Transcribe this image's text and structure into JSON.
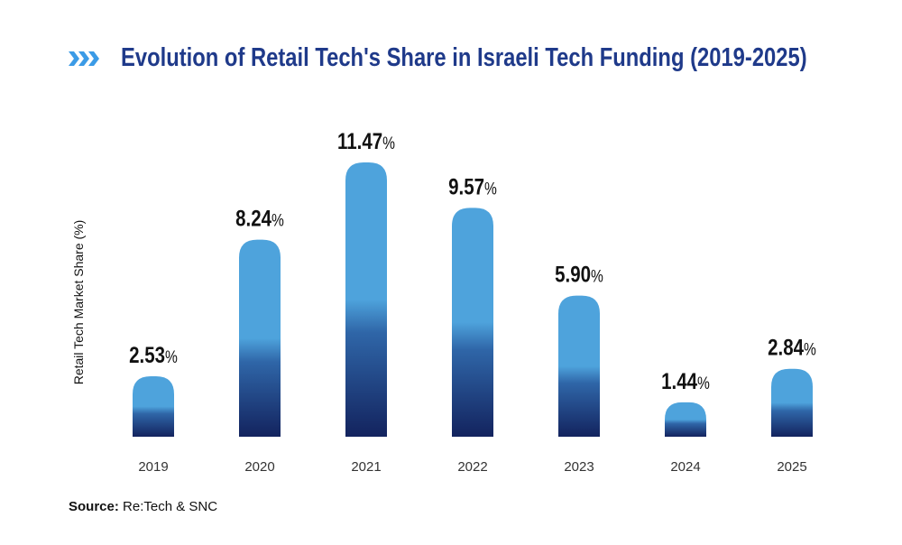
{
  "colors": {
    "title": "#1f3a8a",
    "chevrons": "#3b9be6",
    "bar_top": "#4ea3dc",
    "bar_bottom": "#13235e"
  },
  "chart_data": {
    "type": "bar",
    "title": "Evolution of Retail Tech's Share in Israeli Tech Funding (2019-2025)",
    "ylabel": "Retail Tech Market Share (%)",
    "xlabel": "",
    "categories": [
      "2019",
      "2020",
      "2021",
      "2022",
      "2023",
      "2024",
      "2025"
    ],
    "values": [
      2.53,
      8.24,
      11.47,
      9.57,
      5.9,
      1.44,
      2.84
    ],
    "data_labels": [
      "2.53",
      "8.24",
      "11.47",
      "9.57",
      "5.90",
      "1.44",
      "2.84"
    ],
    "label_suffix": "%",
    "ylim": [
      0,
      12
    ],
    "grid": false,
    "legend": "none"
  },
  "source": {
    "label": "Source:",
    "text": " Re:Tech & SNC"
  }
}
